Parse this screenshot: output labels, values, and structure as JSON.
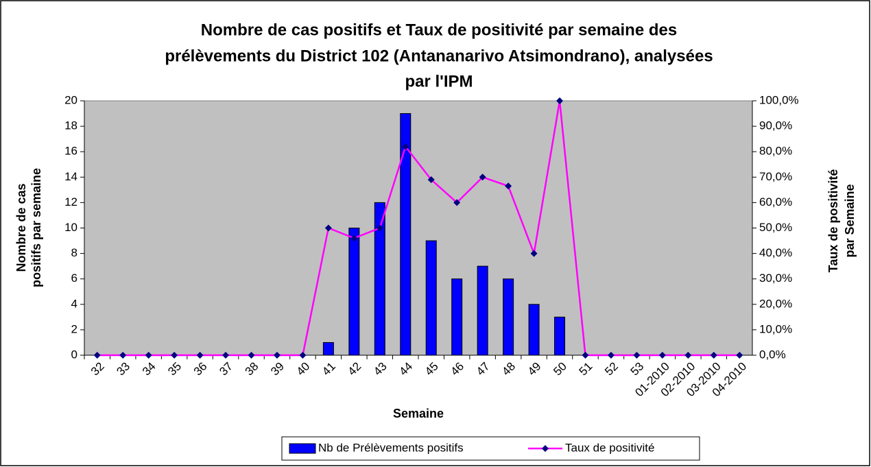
{
  "chart_data": {
    "type": "bar_line",
    "title": [
      "Nombre de cas positifs et Taux de positivité par semaine des",
      "prélèvements du District 102 (Antananarivo Atsimondrano), analysées",
      "par l'IPM"
    ],
    "xlabel": "Semaine",
    "ylabel": [
      "Nombre de cas",
      "positifs par semaine"
    ],
    "y2label": [
      "Taux de positivité",
      "par Semaine"
    ],
    "categories": [
      "32",
      "33",
      "34",
      "35",
      "36",
      "37",
      "38",
      "39",
      "40",
      "41",
      "42",
      "43",
      "44",
      "45",
      "46",
      "47",
      "48",
      "49",
      "50",
      "51",
      "52",
      "53",
      "01-2010",
      "02-2010",
      "03-2010",
      "04-2010"
    ],
    "series": [
      {
        "name": "Nb de Prélèvements positifs",
        "type": "bar",
        "color": "#0000ff",
        "values": [
          0,
          0,
          0,
          0,
          0,
          0,
          0,
          0,
          0,
          1,
          10,
          12,
          19,
          9,
          6,
          7,
          6,
          4,
          3,
          0,
          0,
          0,
          0,
          0,
          0,
          0
        ]
      },
      {
        "name": "Taux de positivité",
        "type": "line",
        "color": "#ff00ff",
        "marker_color": "#000080",
        "axis": "y2",
        "values": [
          0,
          0,
          0,
          0,
          0,
          0,
          0,
          0,
          0,
          50,
          46,
          50,
          82,
          69,
          60,
          70,
          66.5,
          40,
          100,
          0,
          0,
          0,
          0,
          0,
          0,
          0
        ]
      }
    ],
    "ylim": [
      0,
      20
    ],
    "yticks": [
      0,
      2,
      4,
      6,
      8,
      10,
      12,
      14,
      16,
      18,
      20
    ],
    "y2lim": [
      0,
      100
    ],
    "y2ticks": [
      {
        "value": 0,
        "label": "0,0%"
      },
      {
        "value": 10,
        "label": "10,0%"
      },
      {
        "value": 20,
        "label": "20,0%"
      },
      {
        "value": 30,
        "label": "30,0%"
      },
      {
        "value": 40,
        "label": "40,0%"
      },
      {
        "value": 50,
        "label": "50,0%"
      },
      {
        "value": 60,
        "label": "60,0%"
      },
      {
        "value": 70,
        "label": "70,0%"
      },
      {
        "value": 80,
        "label": "80,0%"
      },
      {
        "value": 90,
        "label": "90,0%"
      },
      {
        "value": 100,
        "label": "100,0%"
      }
    ],
    "plot_background": "#c0c0c0",
    "legend": "bottom"
  }
}
